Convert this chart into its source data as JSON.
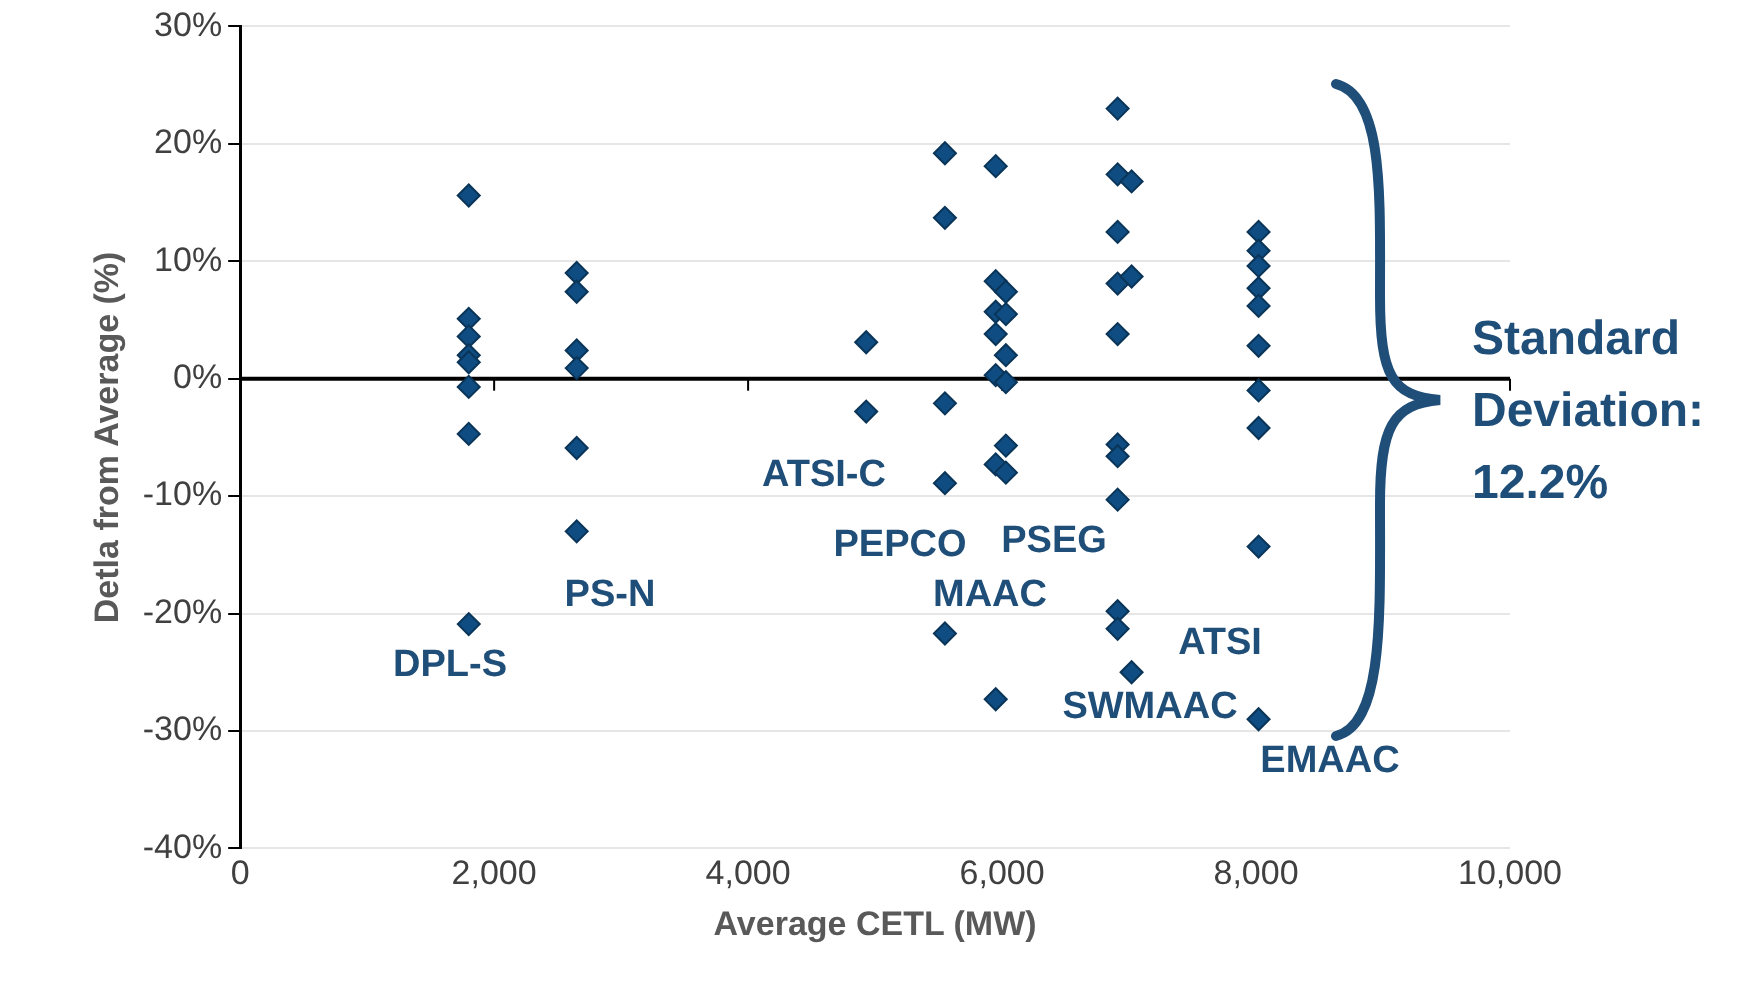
{
  "chart_data": {
    "type": "scatter",
    "xlabel": "Average CETL (MW)",
    "ylabel": "Detla from Average (%)",
    "color": "#0f4c81",
    "marker": "diamond",
    "grid": "y",
    "x": [
      1800,
      1800,
      1800,
      1800,
      1800,
      1800,
      1800,
      1800,
      2650,
      2650,
      2650,
      2650,
      2650,
      2650,
      4930,
      4930,
      5550,
      5550,
      5550,
      5550,
      5550,
      5950,
      5950,
      5950,
      5950,
      5950,
      5950,
      5950,
      6030,
      6030,
      6030,
      6030,
      6030,
      6030,
      6910,
      6910,
      6910,
      6910,
      6910,
      6910,
      6910,
      6910,
      6910,
      6910,
      7020,
      7020,
      7020,
      8020,
      8020,
      8020,
      8020,
      8020,
      8020,
      8020,
      8020,
      8020,
      8020
    ],
    "values": [
      15.6,
      5.1,
      3.6,
      2.0,
      1.4,
      -0.7,
      -4.7,
      -20.9,
      9.0,
      7.4,
      2.4,
      0.9,
      -5.9,
      -13.0,
      3.1,
      -2.8,
      19.2,
      13.7,
      -2.1,
      -8.9,
      -21.7,
      18.1,
      8.3,
      5.7,
      3.8,
      0.3,
      -7.3,
      -27.3,
      7.4,
      5.5,
      2.0,
      -0.3,
      -5.7,
      -8.0,
      23.0,
      17.4,
      12.5,
      8.1,
      3.8,
      -5.6,
      -6.6,
      -10.3,
      -19.8,
      -21.3,
      16.8,
      8.7,
      -25.0,
      12.5,
      10.9,
      9.6,
      7.7,
      6.2,
      2.8,
      -1.0,
      -4.2,
      -14.3,
      -29.0
    ],
    "xlim": [
      0,
      10000
    ],
    "xticks": [
      {
        "value": 0,
        "label": "0"
      },
      {
        "value": 2000,
        "label": "2,000"
      },
      {
        "value": 4000,
        "label": "4,000"
      },
      {
        "value": 6000,
        "label": "6,000"
      },
      {
        "value": 8000,
        "label": "8,000"
      },
      {
        "value": 10000,
        "label": "10,000"
      }
    ],
    "ylim": [
      -40,
      30
    ],
    "yticks": [
      {
        "value": -40,
        "label": "-40%"
      },
      {
        "value": -30,
        "label": "-30%"
      },
      {
        "value": -20,
        "label": "-20%"
      },
      {
        "value": -10,
        "label": "-10%"
      },
      {
        "value": 0,
        "label": "0%"
      },
      {
        "value": 10,
        "label": "10%"
      },
      {
        "value": 20,
        "label": "20%"
      },
      {
        "value": 30,
        "label": "30%"
      }
    ],
    "annotations": [
      "DPL-S",
      "PS-N",
      "ATSI-C",
      "PEPCO",
      "MAAC",
      "PSEG",
      "SWMAAC",
      "ATSI",
      "EMAAC",
      "Standard Deviation: 12.2%"
    ]
  }
}
